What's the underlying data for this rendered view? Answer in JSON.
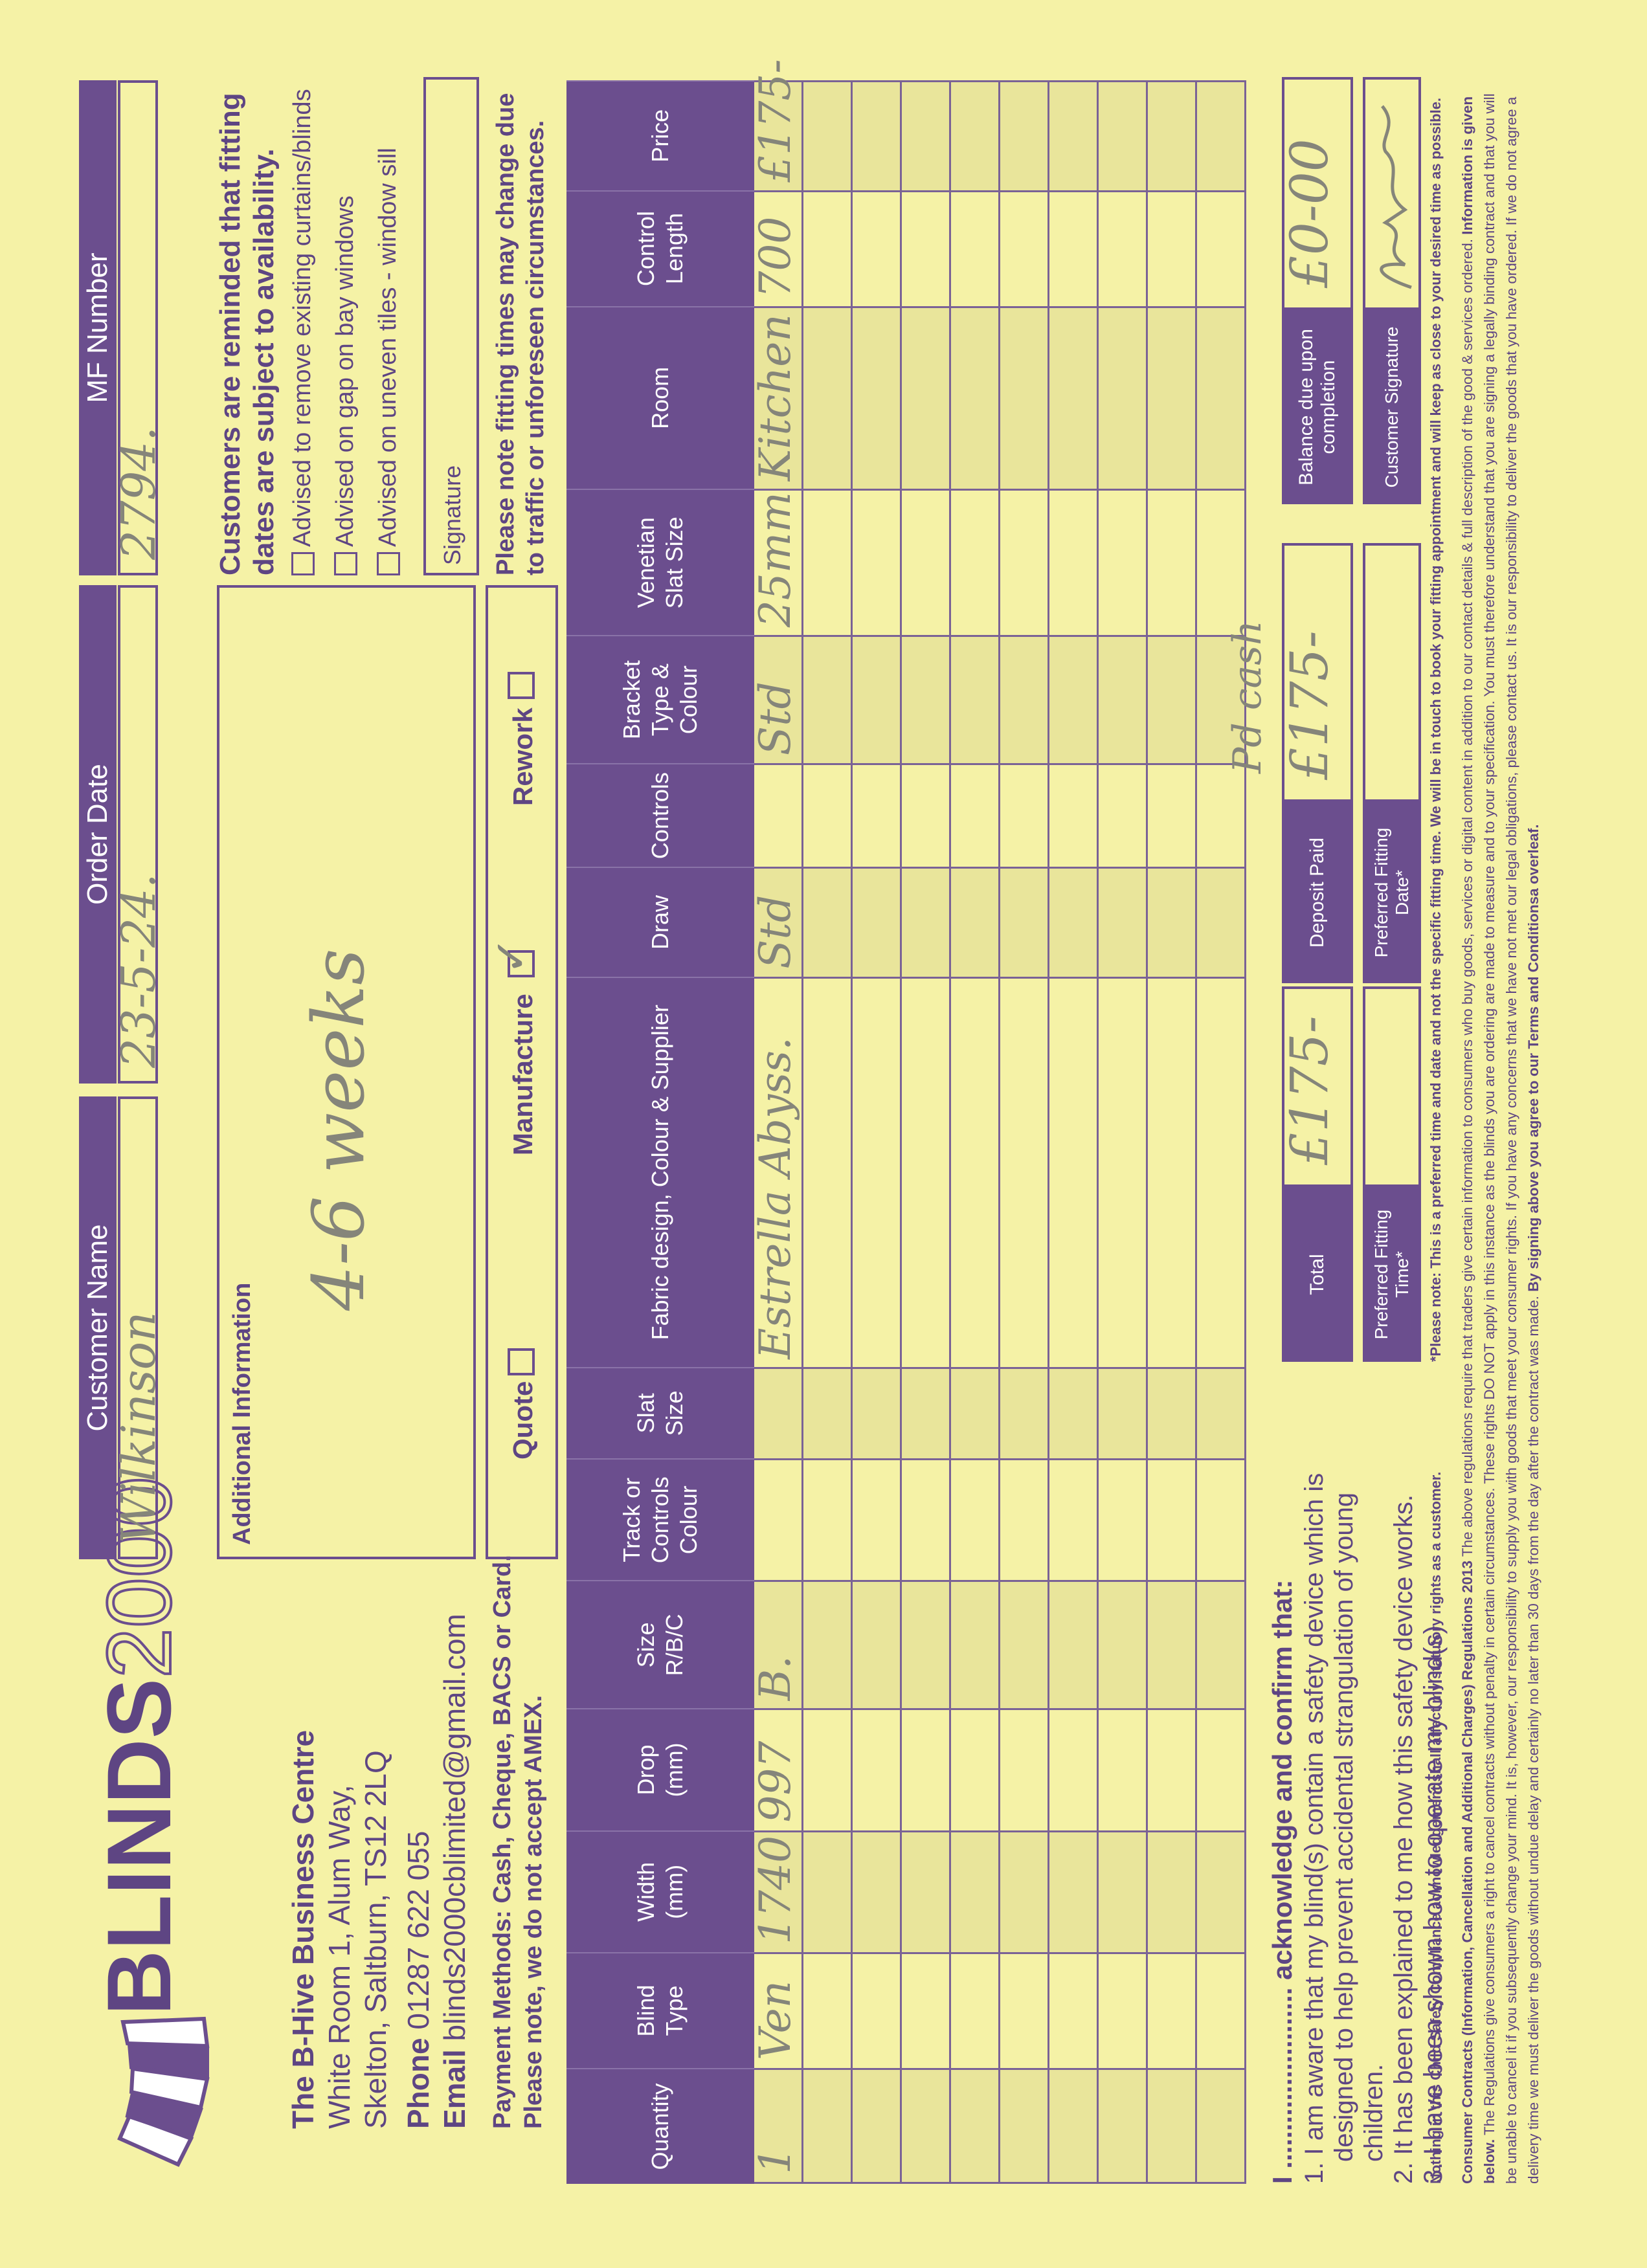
{
  "header": {
    "brand_bold": "BLINDS",
    "brand_light": "2000",
    "address": [
      "The B-Hive Business Centre",
      "White Room 1, Alum Way,",
      "Skelton, Saltburn, TS12 2LQ"
    ],
    "phone_label": "Phone",
    "phone": "01287 622 055",
    "email_label": "Email",
    "email": "blinds2000cblimited@gmail.com",
    "payment": [
      "Payment Methods: Cash, Cheque, BACS or Card.",
      "Please note, we do not accept AMEX."
    ]
  },
  "fields": [
    {
      "label": "Customer Name",
      "value": "Wilkinson"
    },
    {
      "label": "Order Date",
      "value": "23-5-24."
    },
    {
      "label": "MF Number",
      "value": "2794."
    }
  ],
  "additional_information": {
    "label": "Additional Information",
    "value": "4-6 weeks"
  },
  "order_type": [
    {
      "label": "Quote",
      "checked": false
    },
    {
      "label": "Manufacture",
      "checked": true
    },
    {
      "label": "Rework",
      "checked": false
    }
  ],
  "reminder": {
    "title": "Customers are reminded that fitting dates are subject to availability.",
    "options": [
      "Advised to remove existing curtains/blinds",
      "Advised on gap on bay windows",
      "Advised on uneven tiles - window sill"
    ],
    "signature_label": "Signature",
    "note": "Please note fitting times may change due to traffic or unforeseen circumstances."
  },
  "table": {
    "columns": [
      "Quantity",
      "Blind Type",
      "Width (mm)",
      "Drop (mm)",
      "Size R/B/C",
      "Track or Controls Colour",
      "Slat Size",
      "Fabric design, Colour & Supplier",
      "Draw",
      "Controls",
      "Bracket Type & Colour",
      "Venetian Slat Size",
      "Room",
      "Control Length",
      "Price"
    ],
    "rows": [
      [
        "1",
        "Ven",
        "1740",
        "997",
        "B.",
        null,
        null,
        "Estrella Abyss.",
        "Std",
        null,
        "Std",
        "25mm",
        "Kitchen",
        "700",
        "£175-"
      ]
    ]
  },
  "acknowledgement": {
    "title": "I ........................ acknowledge and confirm that:",
    "items": [
      "1. I am aware that my blind(s) contain a safety device which is designed to help prevent accidental strangulation of young children.",
      "2. It has been explained to me how this safety device works.",
      "3. I have been shown how to operate my blind(s)"
    ],
    "footnote": "Nothing in this Child Safety Compliance acknowledgement shall affect my statutory rights as a customer."
  },
  "totals": [
    {
      "label": "Total",
      "value": "£175-"
    },
    {
      "label": "Deposit Paid",
      "value": "£175-",
      "note": "Pd cash"
    },
    {
      "label": "Balance due upon completion",
      "value": "£0-00"
    }
  ],
  "fitting": [
    {
      "label": "Preferred Fitting Time*"
    },
    {
      "label": "Preferred Fitting Date*"
    },
    {
      "label": "Customer Signature"
    }
  ],
  "fitting_note": "*Please note: This is a preferred time and date and not the specific fitting time. We will be in touch to book your fitting appointment and will keep as close to your desired time as possible.",
  "legal": {
    "title": "Consumer Contracts (Information, Cancellation and Additional Charges) Regulations 2013",
    "intro": "The above regulations require that traders give certain information to consumers who buy goods, services or digital content in addition to our contact details & full description of the good & services ordered.",
    "lead": "Information is given below.",
    "body": "The Regulations give consumers a right to cancel contracts without penalty in certain circumstances. These rights DO NOT apply in this instance as the blinds you are ordering are made to measure and to your specification. You must therefore understand that you are signing a legally binding contract and that you will be unable to cancel it if you subsequently change your mind. It is, however, our responsibility to supply you with goods that meet your consumer rights. If you have any concerns that we have not met our legal obligations, please contact us. It is our responsibility to deliver the goods that you have ordered. If we do not agree a delivery time we must deliver the goods without undue delay and certainly no later than 30 days from the day after the contract was made.",
    "closing": "By signing above you agree to our Terms and Conditionsa overleaf."
  }
}
